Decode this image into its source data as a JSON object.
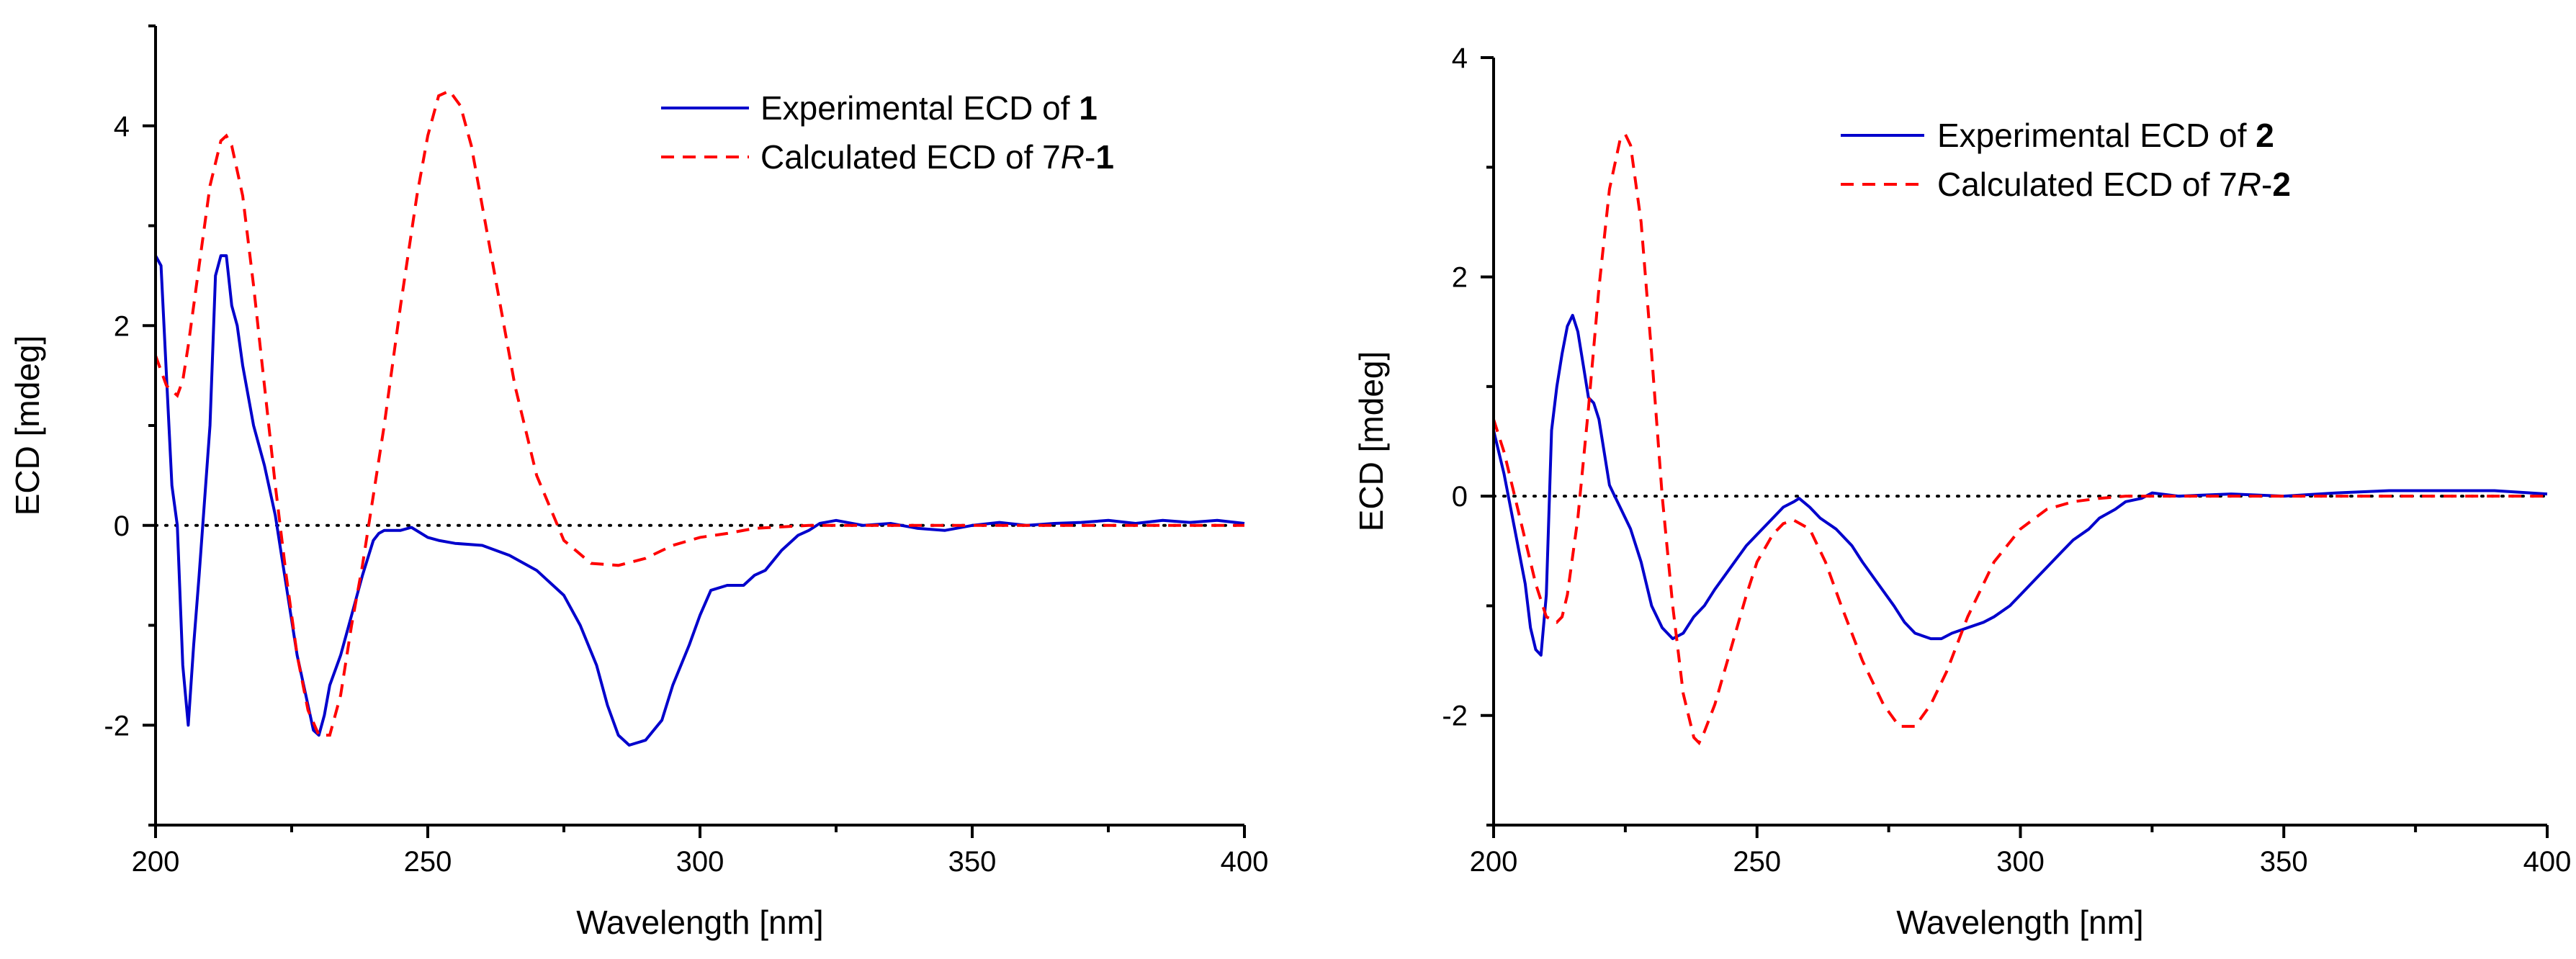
{
  "chart_data": [
    {
      "type": "line",
      "xlabel": "Wavelength [nm]",
      "ylabel": "ECD [mdeg]",
      "xlim": [
        200,
        400
      ],
      "ylim": [
        -3,
        5
      ],
      "xticks": [
        200,
        250,
        300,
        350,
        400
      ],
      "yticks": [
        4,
        2,
        0,
        -2
      ],
      "ytick_labels": [
        "4",
        "2",
        "0",
        "-2"
      ],
      "zero_line": true,
      "legend": [
        {
          "prefix": "Experimental ECD of ",
          "italic": "",
          "bold": "1",
          "style": "solid",
          "color": "#0000cc"
        },
        {
          "prefix": "Calculated ECD of 7",
          "italic": "R",
          "bold": "1",
          "style": "dashed",
          "color": "#ff0000"
        }
      ],
      "series": [
        {
          "name": "Experimental ECD of 1",
          "color": "#0000cc",
          "style": "solid",
          "x": [
            200,
            201,
            203,
            204,
            205,
            206,
            207,
            208,
            210,
            211,
            212,
            213,
            214,
            215,
            216,
            218,
            220,
            222,
            224,
            226,
            228,
            229,
            230,
            231,
            232,
            234,
            236,
            238,
            240,
            241,
            242,
            245,
            247,
            250,
            252,
            255,
            260,
            265,
            270,
            275,
            278,
            281,
            283,
            285,
            287,
            290,
            293,
            295,
            298,
            300,
            302,
            305,
            308,
            310,
            312,
            315,
            318,
            320,
            322,
            325,
            330,
            335,
            340,
            345,
            350,
            355,
            360,
            365,
            370,
            375,
            380,
            385,
            390,
            395,
            400
          ],
          "y": [
            2.7,
            2.6,
            0.4,
            0.0,
            -1.4,
            -2.0,
            -1.2,
            -0.5,
            1.0,
            2.5,
            2.7,
            2.7,
            2.2,
            2.0,
            1.6,
            1.0,
            0.6,
            0.1,
            -0.6,
            -1.3,
            -1.8,
            -2.05,
            -2.1,
            -1.9,
            -1.6,
            -1.3,
            -0.9,
            -0.5,
            -0.15,
            -0.08,
            -0.05,
            -0.05,
            -0.02,
            -0.12,
            -0.15,
            -0.18,
            -0.2,
            -0.3,
            -0.45,
            -0.7,
            -1.0,
            -1.4,
            -1.8,
            -2.1,
            -2.2,
            -2.15,
            -1.95,
            -1.6,
            -1.2,
            -0.9,
            -0.65,
            -0.6,
            -0.6,
            -0.5,
            -0.45,
            -0.25,
            -0.1,
            -0.05,
            0.02,
            0.05,
            0.0,
            0.02,
            -0.03,
            -0.05,
            0.0,
            0.03,
            0.0,
            0.02,
            0.03,
            0.05,
            0.02,
            0.05,
            0.03,
            0.05,
            0.02
          ]
        },
        {
          "name": "Calculated ECD of 7R-1",
          "color": "#ff0000",
          "style": "dashed",
          "x": [
            200,
            202,
            204,
            205,
            206,
            208,
            210,
            212,
            213,
            214,
            216,
            218,
            220,
            222,
            224,
            226,
            228,
            230,
            232,
            234,
            236,
            238,
            240,
            242,
            245,
            248,
            250,
            252,
            254,
            256,
            258,
            260,
            263,
            266,
            270,
            275,
            280,
            285,
            290,
            295,
            300,
            305,
            310,
            320,
            330,
            340,
            350,
            400
          ],
          "y": [
            1.7,
            1.4,
            1.3,
            1.45,
            1.8,
            2.6,
            3.4,
            3.85,
            3.9,
            3.8,
            3.3,
            2.4,
            1.4,
            0.4,
            -0.5,
            -1.3,
            -1.85,
            -2.1,
            -2.1,
            -1.7,
            -1.0,
            -0.4,
            0.3,
            1.0,
            2.2,
            3.3,
            3.9,
            4.3,
            4.35,
            4.2,
            3.8,
            3.2,
            2.3,
            1.4,
            0.5,
            -0.15,
            -0.38,
            -0.4,
            -0.33,
            -0.2,
            -0.12,
            -0.08,
            -0.03,
            0.0,
            0.0,
            0.0,
            0.0,
            0.0
          ]
        }
      ]
    },
    {
      "type": "line",
      "xlabel": "Wavelength [nm]",
      "ylabel": "ECD [mdeg]",
      "xlim": [
        200,
        400
      ],
      "ylim": [
        -3,
        4
      ],
      "xticks": [
        200,
        250,
        300,
        350,
        400
      ],
      "yticks": [
        4,
        2,
        0,
        -2
      ],
      "ytick_labels": [
        "4",
        "2",
        "0",
        "-2"
      ],
      "zero_line": true,
      "legend": [
        {
          "prefix": "Experimental ECD of ",
          "italic": "",
          "bold": "2",
          "style": "solid",
          "color": "#0000cc"
        },
        {
          "prefix": "Calculated ECD of 7",
          "italic": "R",
          "bold": "2",
          "style": "dashed",
          "color": "#ff0000"
        }
      ],
      "series": [
        {
          "name": "Experimental ECD of 2",
          "color": "#0000cc",
          "style": "solid",
          "x": [
            200,
            202,
            204,
            206,
            207,
            208,
            209,
            210,
            211,
            212,
            213,
            214,
            215,
            216,
            217,
            218,
            219,
            220,
            221,
            222,
            223,
            224,
            226,
            228,
            230,
            232,
            234,
            236,
            238,
            240,
            242,
            245,
            248,
            250,
            252,
            255,
            257,
            258,
            260,
            262,
            265,
            268,
            270,
            273,
            276,
            278,
            280,
            283,
            285,
            287,
            290,
            293,
            295,
            298,
            300,
            303,
            305,
            308,
            310,
            313,
            315,
            318,
            320,
            323,
            325,
            330,
            340,
            350,
            360,
            370,
            380,
            390,
            400
          ],
          "y": [
            0.6,
            0.2,
            -0.3,
            -0.8,
            -1.2,
            -1.4,
            -1.45,
            -0.9,
            0.6,
            1.0,
            1.3,
            1.55,
            1.65,
            1.5,
            1.2,
            0.9,
            0.85,
            0.7,
            0.4,
            0.1,
            0.0,
            -0.1,
            -0.3,
            -0.6,
            -1.0,
            -1.2,
            -1.3,
            -1.25,
            -1.1,
            -1.0,
            -0.85,
            -0.65,
            -0.45,
            -0.35,
            -0.25,
            -0.1,
            -0.05,
            -0.02,
            -0.1,
            -0.2,
            -0.3,
            -0.45,
            -0.6,
            -0.8,
            -1.0,
            -1.15,
            -1.25,
            -1.3,
            -1.3,
            -1.25,
            -1.2,
            -1.15,
            -1.1,
            -1.0,
            -0.9,
            -0.75,
            -0.65,
            -0.5,
            -0.4,
            -0.3,
            -0.2,
            -0.12,
            -0.05,
            -0.02,
            0.03,
            0.0,
            0.02,
            0.0,
            0.03,
            0.05,
            0.05,
            0.05,
            0.02
          ]
        },
        {
          "name": "Calculated ECD of 7R-2",
          "color": "#ff0000",
          "style": "dashed",
          "x": [
            200,
            202,
            204,
            206,
            208,
            210,
            212,
            213,
            214,
            216,
            218,
            220,
            222,
            224,
            225,
            226,
            228,
            230,
            232,
            234,
            236,
            238,
            239,
            240,
            242,
            245,
            248,
            250,
            253,
            255,
            257,
            260,
            263,
            266,
            270,
            274,
            277,
            280,
            283,
            286,
            290,
            295,
            300,
            305,
            310,
            315,
            320,
            330,
            340,
            400
          ],
          "y": [
            0.7,
            0.4,
            0.0,
            -0.4,
            -0.8,
            -1.1,
            -1.15,
            -1.1,
            -0.9,
            -0.2,
            0.8,
            1.9,
            2.8,
            3.25,
            3.3,
            3.2,
            2.5,
            1.3,
            0.0,
            -1.0,
            -1.8,
            -2.2,
            -2.25,
            -2.15,
            -1.9,
            -1.4,
            -0.9,
            -0.6,
            -0.35,
            -0.25,
            -0.22,
            -0.3,
            -0.6,
            -1.0,
            -1.5,
            -1.9,
            -2.1,
            -2.1,
            -1.9,
            -1.6,
            -1.1,
            -0.6,
            -0.3,
            -0.12,
            -0.05,
            -0.02,
            0.0,
            0.0,
            0.0,
            0.0
          ]
        }
      ]
    }
  ]
}
